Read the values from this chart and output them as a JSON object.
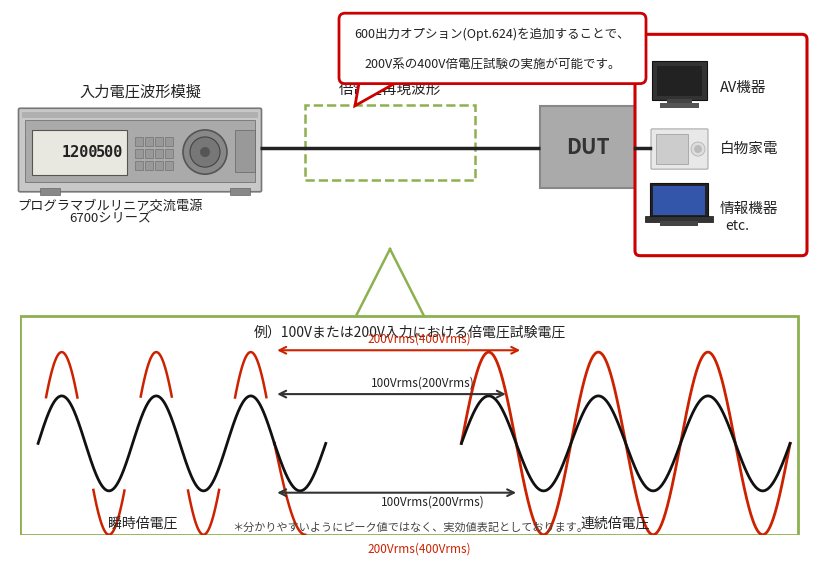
{
  "bg_color": "#ffffff",
  "top_label_input": "入力電圧波形模擬",
  "top_label_wave": "倍電圧再現波形",
  "dut_label": "DUT",
  "device_labels": [
    "AV機器",
    "白物家電",
    "情報機器",
    "etc."
  ],
  "power_label_line1": "プログラマブルリニア交流電源",
  "power_label_line2": "6700シリーズ",
  "callout_text_line1": "600出力オプション(Opt.624)を追加することで、",
  "callout_text_line2": "200V系の400V倍電圧試験の実施が可能です。",
  "graph_title": "例）100Vまたは200V入力における倍電圧試験電圧",
  "label_instant": "瞬時倍電圧",
  "label_continuous": "連続倍電圧",
  "ann_200_red_top": "200Vrms(400Vrms)",
  "ann_100_black_top": "100Vrms(200Vrms)",
  "ann_100_black_bot": "100Vrms(200Vrms)",
  "ann_200_red_bot": "200Vrms(400Vrms)",
  "footnote": "＊分かりやすいようにピーク値ではなく、実効値表記としております。",
  "graph_border_color": "#8db050",
  "callout_border_color": "#cc0000",
  "device_border_color": "#cc0000",
  "arrow_red": "#cc2200",
  "arrow_black": "#333333",
  "wave_black": "#111111",
  "wave_red": "#cc2200",
  "dut_color": "#aaaaaa",
  "dashed_color": "#8db050",
  "ps_body": "#c8c8c8",
  "ps_dark": "#888888",
  "ps_screen": "#e8e8e0"
}
